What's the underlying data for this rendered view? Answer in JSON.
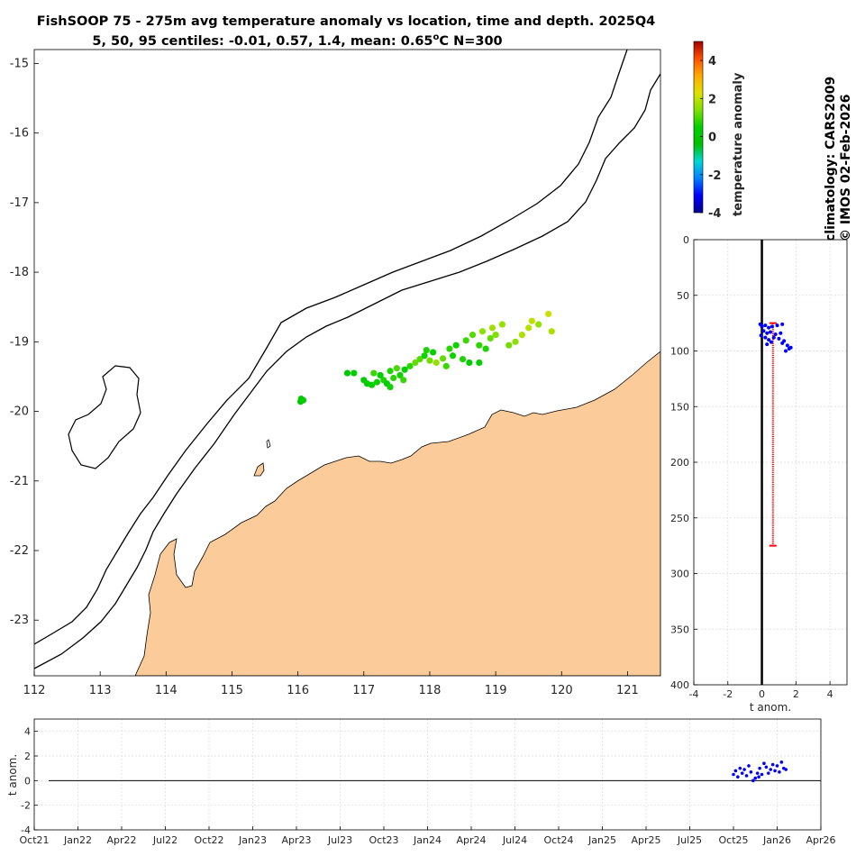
{
  "title": {
    "line1": "FishSOOP 75 - 275m avg temperature anomaly vs location, time and depth. 2025Q4",
    "line2_prefix": "5, 50, 95 centiles: -0.01, 0.57, 1.4, mean: 0.65",
    "line2_unit_sup": "o",
    "line2_suffix": "C N=300"
  },
  "side_text": {
    "colorbar_label": "temperature anomaly",
    "climatology": "climatology: CARS2009",
    "copyright": "© IMOS 02-Feb-2026"
  },
  "colors": {
    "land": "#fbcb9a",
    "series_blue": "#0000ff",
    "range_red": "#ff0000",
    "grid": "#d9d9d9",
    "colormap": [
      "#00008f",
      "#0000ff",
      "#0080ff",
      "#00d7d7",
      "#00c000",
      "#00d000",
      "#80e000",
      "#e0e000",
      "#ffaa00",
      "#ff5000",
      "#a00000"
    ]
  },
  "chart_data": [
    {
      "id": "map",
      "type": "scatter",
      "title": "FishSOOP 75 - 275m avg temperature anomaly vs location, time and depth. 2025Q4",
      "xlabel": "",
      "ylabel": "",
      "xlim": [
        112,
        121.5
      ],
      "ylim": [
        -23.8,
        -14.8
      ],
      "xticks": [
        "112",
        "113",
        "114",
        "115",
        "116",
        "117",
        "118",
        "119",
        "120",
        "121"
      ],
      "yticks": [
        "-15",
        "-16",
        "-17",
        "-18",
        "-19",
        "-20",
        "-21",
        "-22",
        "-23"
      ],
      "color_scale": [
        -4,
        5
      ],
      "colorbar_ticks": [
        "4",
        "2",
        "0",
        "-2",
        "-4"
      ],
      "points": [
        [
          116.05,
          -19.82,
          0.2
        ],
        [
          116.04,
          -19.86,
          0.1
        ],
        [
          116.08,
          -19.84,
          0.3
        ],
        [
          116.75,
          -19.45,
          0.2
        ],
        [
          116.85,
          -19.45,
          0.4
        ],
        [
          117.0,
          -19.55,
          0.3
        ],
        [
          117.05,
          -19.6,
          0.2
        ],
        [
          117.12,
          -19.62,
          0.5
        ],
        [
          117.2,
          -19.58,
          0.6
        ],
        [
          117.3,
          -19.55,
          0.7
        ],
        [
          117.35,
          -19.6,
          0.4
        ],
        [
          117.45,
          -19.52,
          0.8
        ],
        [
          117.55,
          -19.48,
          0.6
        ],
        [
          117.15,
          -19.45,
          0.9
        ],
        [
          117.25,
          -19.48,
          0.5
        ],
        [
          117.4,
          -19.42,
          0.7
        ],
        [
          117.5,
          -19.38,
          1.0
        ],
        [
          117.62,
          -19.4,
          0.5
        ],
        [
          117.7,
          -19.35,
          0.8
        ],
        [
          117.78,
          -19.3,
          1.2
        ],
        [
          117.85,
          -19.25,
          1.1
        ],
        [
          117.92,
          -19.2,
          0.6
        ],
        [
          118.0,
          -19.27,
          1.3
        ],
        [
          118.1,
          -19.3,
          1.6
        ],
        [
          118.2,
          -19.24,
          1.2
        ],
        [
          118.25,
          -19.35,
          0.9
        ],
        [
          118.05,
          -19.15,
          0.5
        ],
        [
          117.95,
          -19.12,
          0.7
        ],
        [
          118.3,
          -19.1,
          0.8
        ],
        [
          118.4,
          -19.05,
          0.6
        ],
        [
          118.55,
          -18.98,
          0.9
        ],
        [
          118.65,
          -18.9,
          1.1
        ],
        [
          118.75,
          -19.05,
          0.8
        ],
        [
          118.85,
          -19.1,
          0.7
        ],
        [
          118.92,
          -18.95,
          1.2
        ],
        [
          119.0,
          -18.9,
          1.4
        ],
        [
          118.8,
          -18.85,
          1.5
        ],
        [
          118.95,
          -18.8,
          1.7
        ],
        [
          119.1,
          -18.75,
          1.6
        ],
        [
          119.2,
          -19.05,
          1.3
        ],
        [
          119.3,
          -19.0,
          1.5
        ],
        [
          119.4,
          -18.9,
          1.8
        ],
        [
          119.5,
          -18.8,
          1.9
        ],
        [
          119.55,
          -18.7,
          2.0
        ],
        [
          119.65,
          -18.75,
          1.6
        ],
        [
          119.8,
          -18.6,
          2.1
        ],
        [
          119.85,
          -18.85,
          1.8
        ],
        [
          118.5,
          -19.25,
          0.7
        ],
        [
          118.6,
          -19.3,
          0.4
        ],
        [
          118.75,
          -19.3,
          0.5
        ],
        [
          118.35,
          -19.2,
          0.6
        ],
        [
          117.6,
          -19.55,
          0.9
        ],
        [
          117.4,
          -19.65,
          0.6
        ]
      ]
    },
    {
      "id": "depth_profile",
      "type": "scatter",
      "xlabel": "t anom.",
      "ylabel": "",
      "xlim": [
        -4,
        5
      ],
      "ylim": [
        0,
        400
      ],
      "xticks": [
        "-4",
        "-2",
        "0",
        "2",
        "4"
      ],
      "yticks": [
        "0",
        "50",
        "100",
        "150",
        "200",
        "250",
        "300",
        "350",
        "400"
      ],
      "reference_x": 0,
      "range_bar": {
        "x": 0.65,
        "depth_min": 75,
        "depth_max": 275
      },
      "points": [
        [
          -0.1,
          76
        ],
        [
          0.0,
          78
        ],
        [
          0.2,
          77
        ],
        [
          0.4,
          79
        ],
        [
          0.6,
          78
        ],
        [
          0.9,
          77
        ],
        [
          1.2,
          76
        ],
        [
          0.1,
          82
        ],
        [
          0.3,
          84
        ],
        [
          0.5,
          83
        ],
        [
          0.8,
          85
        ],
        [
          1.1,
          84
        ],
        [
          -0.05,
          86
        ],
        [
          0.2,
          88
        ],
        [
          0.4,
          90
        ],
        [
          0.7,
          88
        ],
        [
          1.0,
          89
        ],
        [
          1.3,
          91
        ],
        [
          1.5,
          95
        ],
        [
          1.6,
          98
        ],
        [
          1.4,
          100
        ],
        [
          1.7,
          97
        ],
        [
          1.2,
          93
        ],
        [
          0.55,
          92
        ],
        [
          0.3,
          94
        ]
      ]
    },
    {
      "id": "time_series",
      "type": "scatter",
      "xlabel": "",
      "ylabel": "t anom.",
      "ylim": [
        -4,
        5
      ],
      "yticks": [
        "4",
        "2",
        "0",
        "-2",
        "-4"
      ],
      "xticks": [
        "Oct21",
        "Jan22",
        "Apr22",
        "Jul22",
        "Oct22",
        "Jan23",
        "Apr23",
        "Jul23",
        "Oct23",
        "Jan24",
        "Apr24",
        "Jul24",
        "Oct24",
        "Jan25",
        "Apr25",
        "Jul25",
        "Oct25",
        "Jan26",
        "Apr26"
      ],
      "reference_y": 0,
      "points": [
        [
          16.0,
          0.5
        ],
        [
          16.05,
          0.8
        ],
        [
          16.1,
          0.3
        ],
        [
          16.15,
          1.0
        ],
        [
          16.2,
          0.6
        ],
        [
          16.25,
          0.9
        ],
        [
          16.3,
          0.4
        ],
        [
          16.35,
          1.2
        ],
        [
          16.4,
          0.7
        ],
        [
          16.5,
          0.2
        ],
        [
          16.55,
          0.6
        ],
        [
          16.6,
          1.0
        ],
        [
          16.65,
          0.5
        ],
        [
          16.7,
          1.4
        ],
        [
          16.75,
          1.1
        ],
        [
          16.8,
          0.6
        ],
        [
          16.85,
          0.9
        ],
        [
          16.9,
          1.3
        ],
        [
          16.95,
          0.8
        ],
        [
          17.0,
          1.2
        ],
        [
          17.05,
          0.7
        ],
        [
          17.1,
          1.5
        ],
        [
          17.15,
          1.0
        ],
        [
          17.2,
          0.9
        ],
        [
          16.45,
          0.0
        ],
        [
          16.58,
          0.3
        ]
      ]
    }
  ]
}
